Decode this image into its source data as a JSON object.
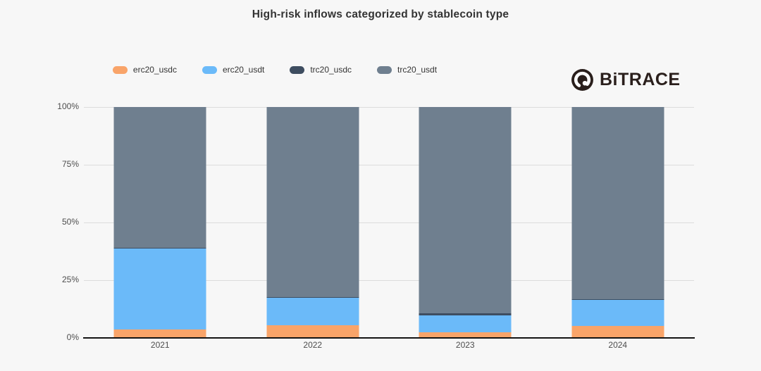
{
  "logo": {
    "text": "BiTRACE"
  },
  "colors": {
    "background": "#f7f7f7",
    "gridline": "#dcdcdc",
    "axis_line": "#141414",
    "axis_label": "#4d4d4d",
    "title_text": "#333333",
    "logo_text": "#2a1f1c"
  },
  "chart_data": {
    "type": "bar",
    "stacked": true,
    "stack_unit": "percent",
    "title": "High-risk inflows categorized by stablecoin type",
    "categories": [
      "2021",
      "2022",
      "2023",
      "2024"
    ],
    "series": [
      {
        "name": "erc20_usdc",
        "color": "#f9a469",
        "values": [
          3.8,
          5.5,
          2.5,
          5.3
        ]
      },
      {
        "name": "erc20_usdt",
        "color": "#6bbaf9",
        "values": [
          35.0,
          11.9,
          7.4,
          11.3
        ]
      },
      {
        "name": "trc20_usdc",
        "color": "#3e4d60",
        "values": [
          0.3,
          0.3,
          0.8,
          0.3
        ]
      },
      {
        "name": "trc20_usdt",
        "color": "#6f7f8f",
        "values": [
          60.9,
          82.3,
          89.3,
          83.1
        ]
      }
    ],
    "xlabel": "",
    "ylabel": "",
    "ylim": [
      0,
      100
    ],
    "yticks": [
      {
        "label": "0%",
        "value": 0
      },
      {
        "label": "25%",
        "value": 25
      },
      {
        "label": "50%",
        "value": 50
      },
      {
        "label": "75%",
        "value": 75
      },
      {
        "label": "100%",
        "value": 100
      }
    ],
    "grid": true,
    "legend_position": "top-center"
  }
}
